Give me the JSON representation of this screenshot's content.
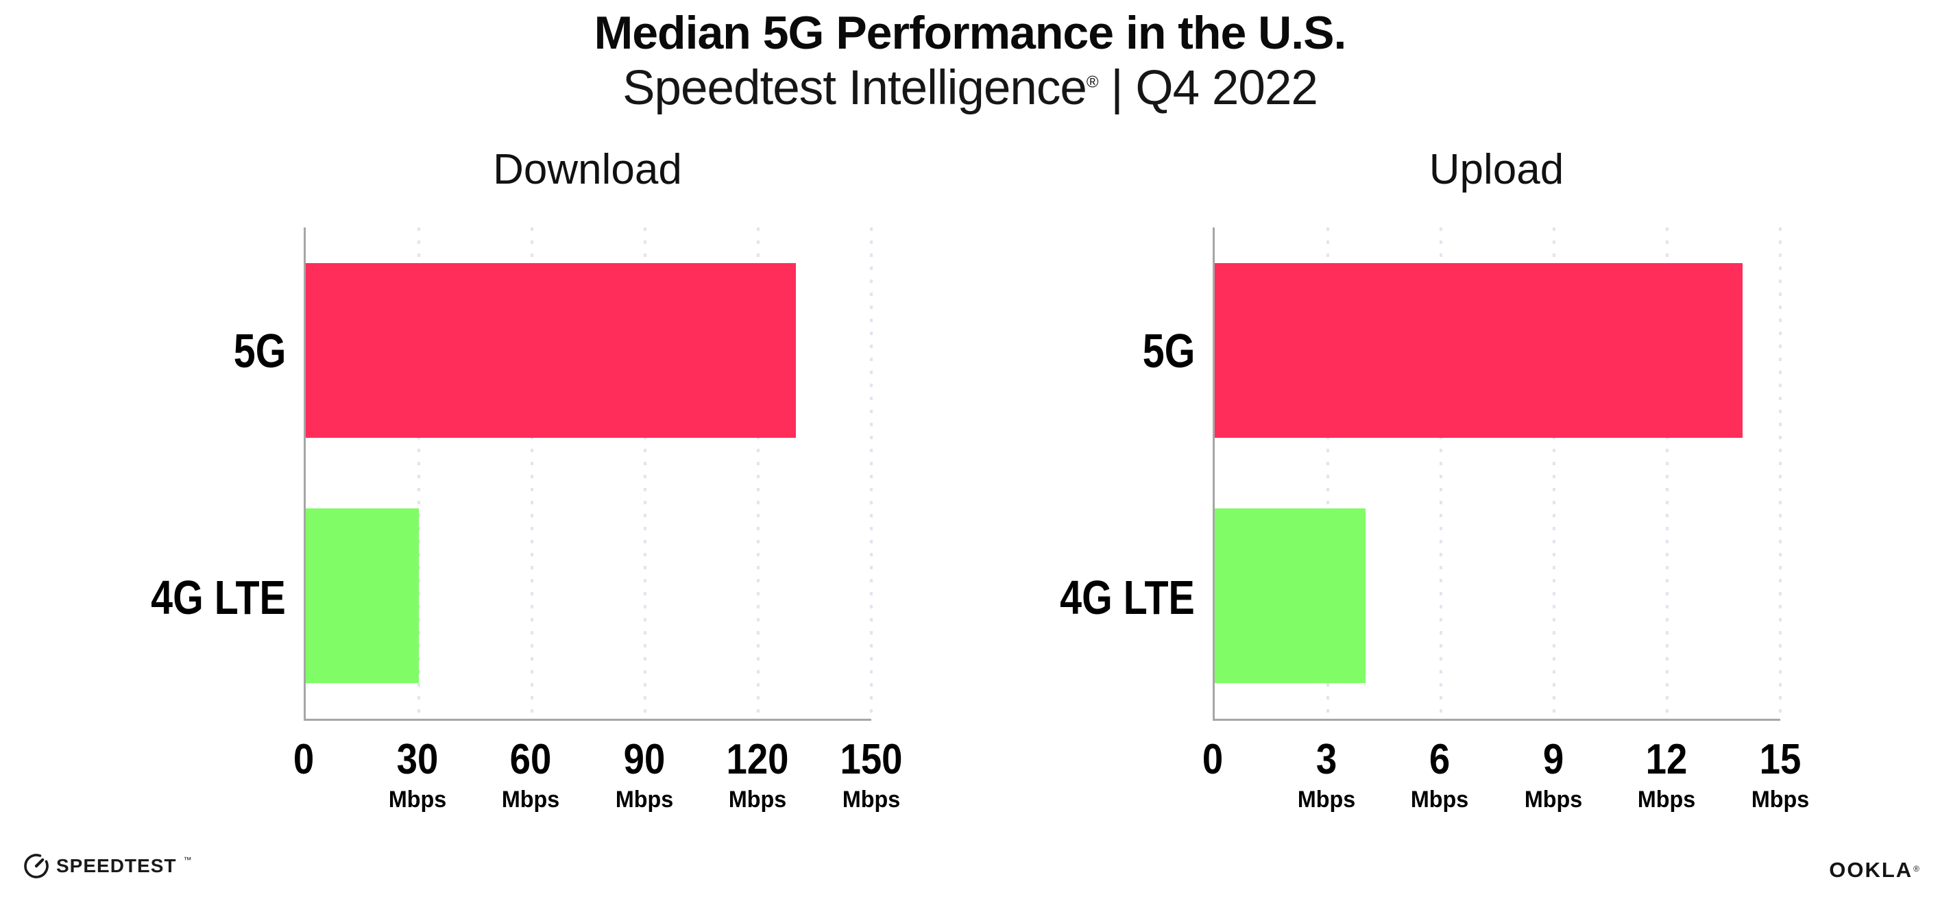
{
  "header": {
    "title": "Median 5G Performance in the U.S.",
    "subtitle_brand": "Speedtest Intelligence",
    "subtitle_reg": "®",
    "subtitle_rest": " | Q4 2022"
  },
  "chart_data": [
    {
      "type": "bar",
      "orientation": "horizontal",
      "title": "Download",
      "categories": [
        "5G",
        "4G LTE"
      ],
      "values": [
        130,
        30
      ],
      "unit": "Mbps",
      "xlim": [
        0,
        150
      ],
      "xticks": [
        0,
        30,
        60,
        90,
        120,
        150
      ],
      "tick_unit_label": "Mbps",
      "grid": "dotted-vertical-at-ticks",
      "legend": "none",
      "bar_colors": [
        "#ff2d5a",
        "#80fc66"
      ]
    },
    {
      "type": "bar",
      "orientation": "horizontal",
      "title": "Upload",
      "categories": [
        "5G",
        "4G LTE"
      ],
      "values": [
        14,
        4
      ],
      "unit": "Mbps",
      "xlim": [
        0,
        15
      ],
      "xticks": [
        0,
        3,
        6,
        9,
        12,
        15
      ],
      "tick_unit_label": "Mbps",
      "grid": "dotted-vertical-at-ticks",
      "legend": "none",
      "bar_colors": [
        "#ff2d5a",
        "#80fc66"
      ]
    }
  ],
  "footer": {
    "speedtest_label": "SPEEDTEST",
    "speedtest_tm": "™",
    "ookla_label": "OOKLA",
    "ookla_reg": "®"
  },
  "colors": {
    "bar_5g": "#ff2d5a",
    "bar_4g_lte": "#80fc66",
    "axis_line": "#a6a6a6",
    "gridline_dots": "#e2e4ef",
    "text": "#000000",
    "background": "#ffffff"
  }
}
